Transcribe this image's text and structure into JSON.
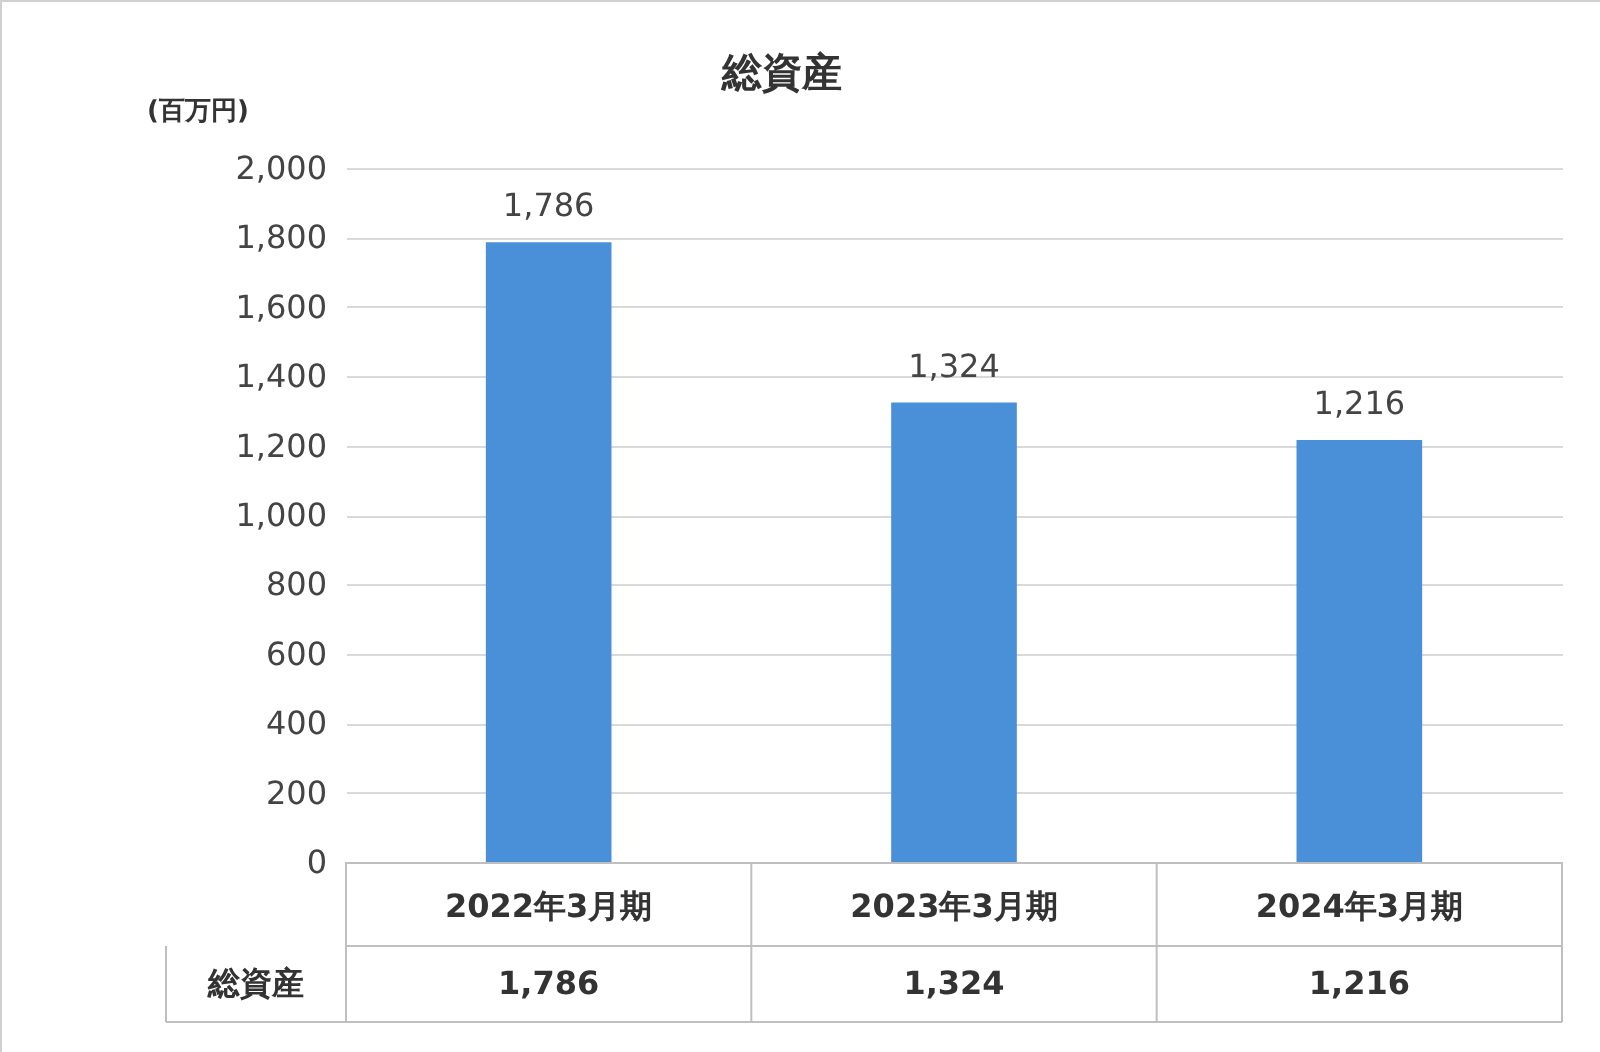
{
  "chart_data": {
    "type": "bar",
    "title": "総資産",
    "ylabel": "(百万円)",
    "categories": [
      "2022年3月期",
      "2023年3月期",
      "2024年3月期"
    ],
    "series": [
      {
        "name": "総資産",
        "color": "#4a90d9",
        "values": [
          1786,
          1324,
          1216
        ],
        "value_labels": [
          "1,786",
          "1,324",
          "1,216"
        ]
      }
    ],
    "ylim": [
      0,
      2000
    ],
    "yticks": [
      0,
      200,
      400,
      600,
      800,
      {
        "value": 1000,
        "label": "1,000"
      },
      {
        "value": 1200,
        "label": "1,200"
      },
      {
        "value": 1400,
        "label": "1,400"
      },
      {
        "value": 1600,
        "label": "1,600"
      },
      {
        "value": 1800,
        "label": "1,800"
      },
      {
        "value": 2000,
        "label": "2,000"
      }
    ],
    "grid": "y"
  }
}
